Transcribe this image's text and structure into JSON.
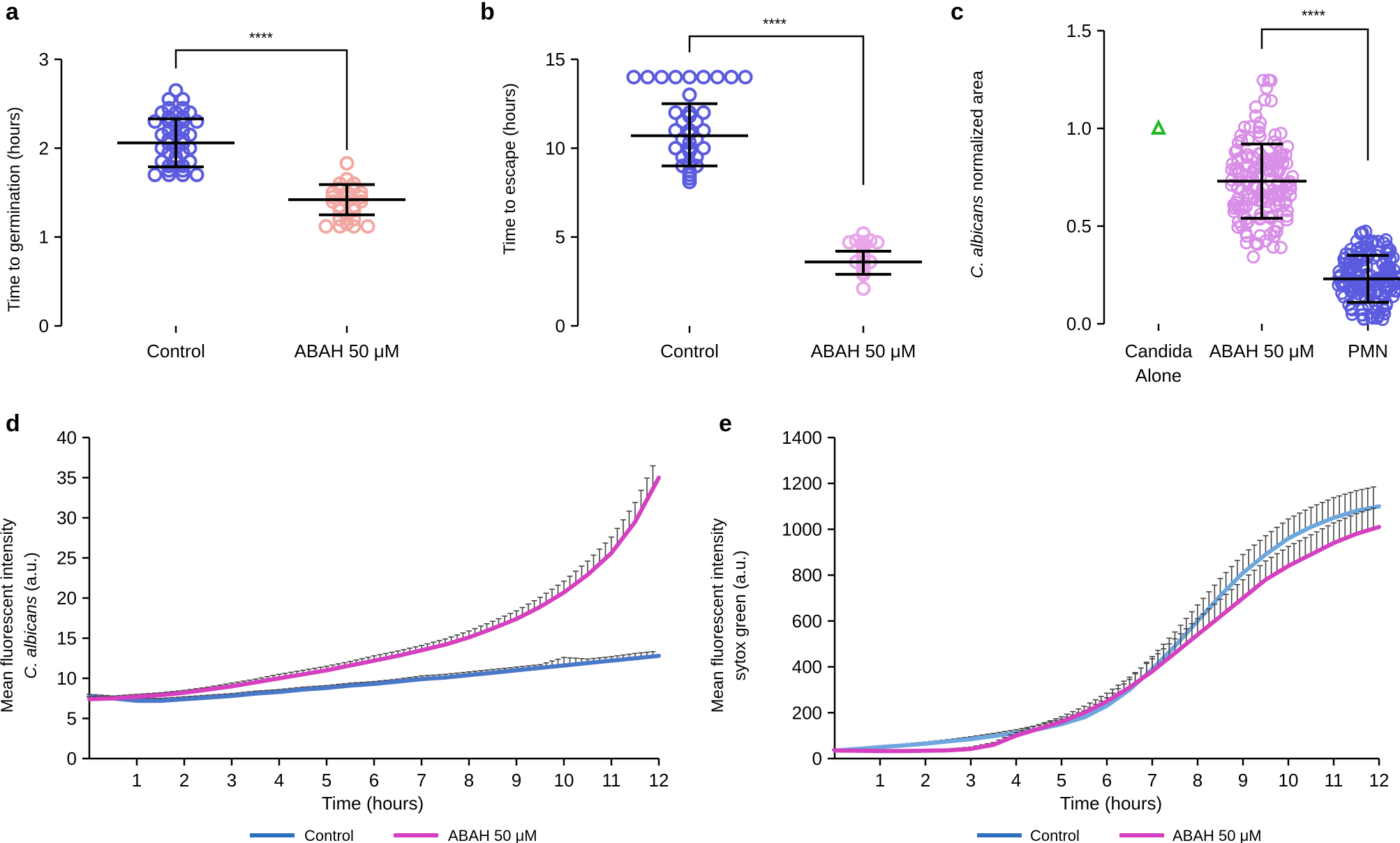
{
  "figure_title": "Five-panel figure: germination, escape, normalized area, and fluorescence time courses",
  "colors": {
    "control_blue": "#5b5be0",
    "salmon": "#f2a7a0",
    "lavender": "#e9a6e9",
    "violet": "#d98ee8",
    "green": "#22bb22",
    "line_blue": "#4a78c9",
    "line_blue_e": "#6ea7dd",
    "line_magenta": "#d63fc0",
    "error_gray": "#444444",
    "legend_blue": "#2f6fbf",
    "legend_magenta": "#d63fc0"
  },
  "chart_data": [
    {
      "panel": "a",
      "type": "scatter",
      "title": "",
      "xlabel": "",
      "ylabel": "Time to germination (hours)",
      "ylim": [
        0,
        3
      ],
      "yticks": [
        "0",
        "1",
        "2",
        "3"
      ],
      "categories": [
        "Control",
        "ABAH 50 μM"
      ],
      "series": [
        {
          "name": "Control",
          "mean": 2.06,
          "sd_low": 1.79,
          "sd_high": 2.33,
          "values": [
            2.65,
            2.55,
            2.55,
            2.45,
            2.45,
            2.4,
            2.4,
            2.4,
            2.35,
            2.35,
            2.3,
            2.3,
            2.3,
            2.3,
            2.25,
            2.2,
            2.2,
            2.15,
            2.15,
            2.15,
            2.1,
            2.1,
            2.05,
            2.05,
            2.0,
            2.0,
            2.0,
            1.95,
            1.95,
            1.9,
            1.85,
            1.85,
            1.85,
            1.8,
            1.8,
            1.75,
            1.75,
            1.7,
            1.7,
            1.7,
            1.7
          ]
        },
        {
          "name": "ABAH 50 μM",
          "mean": 1.42,
          "sd_low": 1.25,
          "sd_high": 1.59,
          "values": [
            1.83,
            1.65,
            1.6,
            1.6,
            1.55,
            1.55,
            1.5,
            1.5,
            1.5,
            1.45,
            1.45,
            1.45,
            1.4,
            1.4,
            1.4,
            1.35,
            1.35,
            1.3,
            1.3,
            1.25,
            1.2,
            1.2,
            1.15,
            1.12,
            1.12,
            1.12,
            1.12
          ]
        }
      ],
      "annotation": "****"
    },
    {
      "panel": "b",
      "type": "scatter",
      "title": "",
      "xlabel": "",
      "ylabel": "Time to escape (hours)",
      "ylim": [
        0,
        15
      ],
      "yticks": [
        "0",
        "5",
        "10",
        "15"
      ],
      "categories": [
        "Control",
        "ABAH 50 μM"
      ],
      "series": [
        {
          "name": "Control",
          "mean": 10.7,
          "sd_low": 9.0,
          "sd_high": 12.5,
          "values": [
            14.0,
            14.0,
            14.0,
            14.0,
            14.0,
            14.0,
            14.0,
            14.0,
            14.0,
            13.0,
            12.0,
            12.0,
            12.0,
            11.8,
            11.5,
            11.5,
            11.0,
            11.0,
            11.0,
            10.8,
            10.5,
            10.5,
            10.3,
            10.0,
            10.0,
            10.0,
            9.8,
            9.5,
            9.5,
            9.2,
            9.0,
            9.0,
            8.7,
            8.5,
            8.3,
            8.1
          ]
        },
        {
          "name": "ABAH 50 μM",
          "mean": 3.6,
          "sd_low": 2.9,
          "sd_high": 4.2,
          "values": [
            5.2,
            4.8,
            4.8,
            4.7,
            4.7,
            4.7,
            4.6,
            4.4,
            4.2,
            4.0,
            3.8,
            3.6,
            3.6,
            3.5,
            3.4,
            3.2,
            3.0,
            2.9,
            2.1
          ]
        }
      ],
      "annotation": "****"
    },
    {
      "panel": "c",
      "type": "scatter",
      "title": "",
      "xlabel": "",
      "ylabel_italic": "C. albicans",
      "ylabel_rest": " normalized area",
      "ylim": [
        0.0,
        1.5
      ],
      "yticks": [
        "0.0",
        "0.5",
        "1.0",
        "1.5"
      ],
      "categories": [
        "Candida",
        "ABAH 50 μM",
        "PMN"
      ],
      "category_line2": [
        "Alone",
        "",
        ""
      ],
      "series": [
        {
          "name": "Candida Alone",
          "marker": "triangle",
          "values": [
            1.0
          ]
        },
        {
          "name": "ABAH 50 μM",
          "mean": 0.73,
          "sd_low": 0.54,
          "sd_high": 0.92,
          "n": 160,
          "min": 0.33,
          "max": 1.26
        },
        {
          "name": "PMN",
          "mean": 0.23,
          "sd_low": 0.11,
          "sd_high": 0.35,
          "n": 160,
          "min": 0.02,
          "max": 0.52
        }
      ],
      "annotation": "****"
    },
    {
      "panel": "d",
      "type": "line",
      "title": "",
      "xlabel": "Time (hours)",
      "ylabel_line1": "Mean fluorescent intensity",
      "ylabel_line2_italic": "C. albicans",
      "ylabel_line2_rest": " (a.u.)",
      "xlim": [
        0,
        12
      ],
      "ylim": [
        0,
        40
      ],
      "xticks": [
        "1",
        "2",
        "3",
        "4",
        "5",
        "6",
        "7",
        "8",
        "9",
        "10",
        "11",
        "12"
      ],
      "yticks": [
        "0",
        "5",
        "10",
        "15",
        "20",
        "25",
        "30",
        "35",
        "40"
      ],
      "x": [
        0,
        0.5,
        1,
        1.5,
        2,
        2.5,
        3,
        3.5,
        4,
        4.5,
        5,
        5.5,
        6,
        6.5,
        7,
        7.5,
        8,
        8.5,
        9,
        9.5,
        10,
        10.5,
        11,
        11.5,
        12
      ],
      "series": [
        {
          "name": "Control",
          "values": [
            7.7,
            7.5,
            7.2,
            7.2,
            7.4,
            7.6,
            7.8,
            8.1,
            8.3,
            8.6,
            8.8,
            9.1,
            9.3,
            9.6,
            9.9,
            10.1,
            10.4,
            10.7,
            11.0,
            11.3,
            11.6,
            11.9,
            12.2,
            12.5,
            12.8
          ],
          "error": [
            0.3,
            0.3,
            0.3,
            0.3,
            0.3,
            0.3,
            0.3,
            0.3,
            0.3,
            0.3,
            0.3,
            0.3,
            0.3,
            0.3,
            0.4,
            0.4,
            0.4,
            0.4,
            0.4,
            0.4,
            1.0,
            0.5,
            0.5,
            0.6,
            0.6
          ]
        },
        {
          "name": "ABAH 50 μM",
          "values": [
            7.4,
            7.5,
            7.7,
            7.9,
            8.2,
            8.6,
            9.0,
            9.5,
            10.0,
            10.5,
            11.0,
            11.6,
            12.2,
            12.8,
            13.5,
            14.2,
            15.1,
            16.2,
            17.4,
            18.9,
            20.7,
            22.9,
            25.6,
            29.5,
            35.0
          ],
          "error": [
            0.3,
            0.3,
            0.3,
            0.3,
            0.3,
            0.3,
            0.4,
            0.4,
            0.5,
            0.5,
            0.5,
            0.5,
            0.6,
            0.6,
            0.6,
            0.7,
            0.8,
            0.9,
            1.0,
            1.2,
            1.4,
            1.7,
            2.0,
            2.4,
            3.0
          ]
        }
      ]
    },
    {
      "panel": "e",
      "type": "line",
      "title": "",
      "xlabel": "Time (hours)",
      "ylabel_line1": "Mean fluorescent intensity",
      "ylabel_line2": "sytox green (a.u.)",
      "xlim": [
        0,
        12
      ],
      "ylim": [
        0,
        1400
      ],
      "xticks": [
        "1",
        "2",
        "3",
        "4",
        "5",
        "6",
        "7",
        "8",
        "9",
        "10",
        "11",
        "12"
      ],
      "yticks": [
        "0",
        "200",
        "400",
        "600",
        "800",
        "1000",
        "1200",
        "1400"
      ],
      "x": [
        0,
        0.5,
        1,
        1.5,
        2,
        2.5,
        3,
        3.5,
        4,
        4.5,
        5,
        5.5,
        6,
        6.5,
        7,
        7.5,
        8,
        8.5,
        9,
        9.5,
        10,
        10.5,
        11,
        11.5,
        12
      ],
      "series": [
        {
          "name": "Control",
          "values": [
            35,
            42,
            50,
            57,
            65,
            75,
            85,
            98,
            112,
            128,
            150,
            180,
            230,
            300,
            390,
            490,
            600,
            710,
            810,
            890,
            960,
            1010,
            1050,
            1080,
            1100
          ],
          "error": [
            5,
            5,
            6,
            6,
            7,
            8,
            10,
            12,
            14,
            18,
            22,
            28,
            35,
            45,
            55,
            62,
            70,
            75,
            80,
            82,
            85,
            86,
            88,
            88,
            90
          ]
        },
        {
          "name": "ABAH 50 μM",
          "values": [
            35,
            34,
            33,
            33,
            34,
            36,
            42,
            60,
            100,
            130,
            160,
            200,
            250,
            310,
            380,
            460,
            540,
            620,
            700,
            780,
            840,
            890,
            940,
            980,
            1010
          ],
          "error": [
            5,
            5,
            5,
            5,
            5,
            6,
            8,
            10,
            14,
            18,
            22,
            28,
            35,
            45,
            55,
            62,
            70,
            75,
            80,
            82,
            85,
            86,
            88,
            88,
            90
          ]
        }
      ]
    }
  ],
  "panels": {
    "a": {
      "label": "a",
      "significance": "****"
    },
    "b": {
      "label": "b",
      "significance": "****"
    },
    "c": {
      "label": "c",
      "significance": "****"
    },
    "d": {
      "label": "d"
    },
    "e": {
      "label": "e"
    }
  },
  "legend": {
    "control": "Control",
    "abah": "ABAH 50 μM"
  }
}
